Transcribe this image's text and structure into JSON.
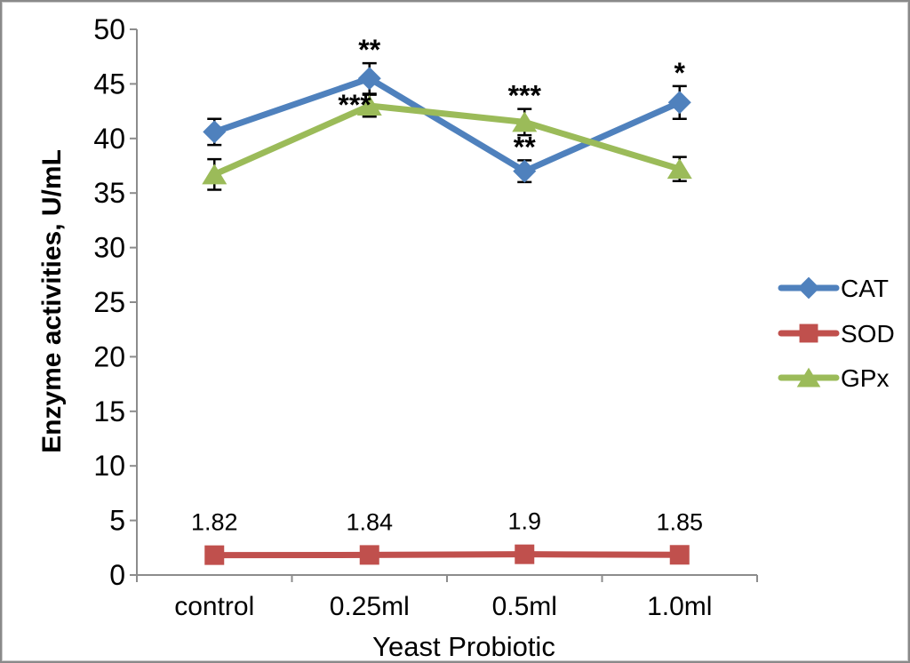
{
  "figure": {
    "background": "#ffffff",
    "border_color": "#8a8a8a"
  },
  "chart_data": {
    "type": "line",
    "title": "",
    "xlabel": "Yeast Probiotic",
    "ylabel": "Enzyme activities, U/mL",
    "categories": [
      "control",
      "0.25ml",
      "0.5ml",
      "1.0ml"
    ],
    "y_ticks": [
      0,
      5,
      10,
      15,
      20,
      25,
      30,
      35,
      40,
      45,
      50
    ],
    "ylim": [
      0,
      50
    ],
    "grid": false,
    "error_bar_color": "#000000",
    "axis_color": "#8c8c8c",
    "series": [
      {
        "name": "CAT",
        "color": "#4F81BD",
        "marker": "diamond",
        "values": [
          40.6,
          45.5,
          37.0,
          43.3
        ],
        "errors": [
          1.2,
          1.4,
          1.0,
          1.5
        ],
        "data_labels": null
      },
      {
        "name": "SOD",
        "color": "#C0504D",
        "marker": "square",
        "values": [
          1.82,
          1.84,
          1.9,
          1.85
        ],
        "errors": [
          0,
          0,
          0,
          0
        ],
        "data_labels": [
          "1.82",
          "1.84",
          "1.9",
          "1.85"
        ]
      },
      {
        "name": "GPx",
        "color": "#9BBB59",
        "marker": "triangle",
        "values": [
          36.7,
          43.0,
          41.5,
          37.2
        ],
        "errors": [
          1.4,
          1.0,
          1.2,
          1.1
        ],
        "data_labels": null
      }
    ],
    "annotations": [
      {
        "text": "**",
        "series": "CAT",
        "category": "0.25ml",
        "placement": "above"
      },
      {
        "text": "***",
        "series": "GPx",
        "category": "0.25ml",
        "placement": "left"
      },
      {
        "text": "***",
        "series": "GPx",
        "category": "0.5ml",
        "placement": "above"
      },
      {
        "text": "**",
        "series": "CAT",
        "category": "0.5ml",
        "placement": "above"
      },
      {
        "text": "*",
        "series": "CAT",
        "category": "1.0ml",
        "placement": "above"
      }
    ],
    "legend": {
      "position": "right",
      "items": [
        "CAT",
        "SOD",
        "GPx"
      ]
    }
  }
}
